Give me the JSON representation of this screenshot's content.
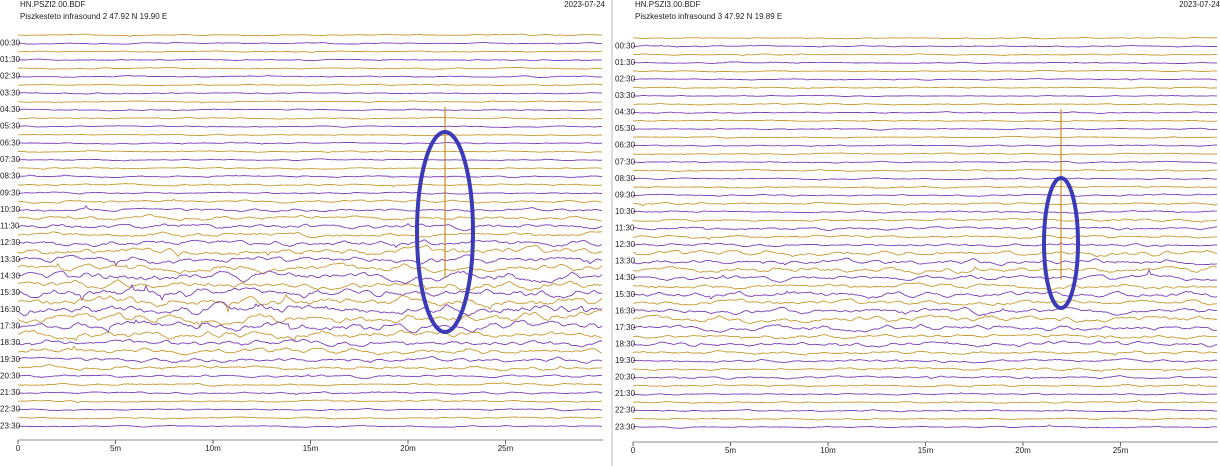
{
  "panels": [
    {
      "station": "HN.PSZI2.00.BDF",
      "subtitle": "Piszkesteto infrasound 2  47.92 N 19.90 E",
      "date": "2023-07-24",
      "row_labels": [
        "00:30",
        "01:30",
        "02:30",
        "03:30",
        "04:30",
        "05:30",
        "06:30",
        "07:30",
        "08:30",
        "09:30",
        "10:30",
        "11:30",
        "12:30",
        "13:30",
        "14:30",
        "15:30",
        "16:30",
        "17:30",
        "18:30",
        "19:30",
        "20:30",
        "21:30",
        "22:30",
        "23:30"
      ],
      "x_ticks": [
        "0",
        "5m",
        "10m",
        "15m",
        "20m",
        "25m"
      ]
    },
    {
      "station": "HN.PSZI3.00.BDF",
      "subtitle": "Piszkesteto infrasound 3  47.92 N 19.89 E",
      "date": "2023-07-24",
      "row_labels": [
        "00:30",
        "01:30",
        "02:30",
        "03:30",
        "04:30",
        "05:30",
        "06:30",
        "07:30",
        "08:30",
        "09:30",
        "10:30",
        "11:30",
        "12:30",
        "13:30",
        "14:30",
        "15:30",
        "16:30",
        "17:30",
        "18:30",
        "19:30",
        "20:30",
        "21:30",
        "22:30",
        "23:30"
      ],
      "x_ticks": [
        "0",
        "5m",
        "10m",
        "15m",
        "20m",
        "25m"
      ]
    }
  ]
}
